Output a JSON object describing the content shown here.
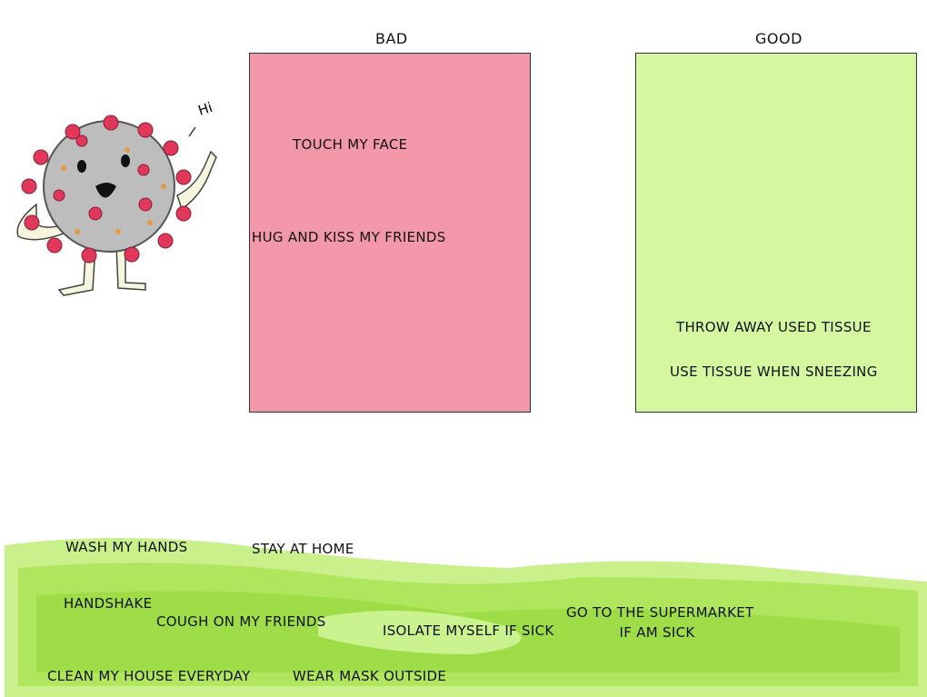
{
  "columns": {
    "bad": {
      "title": "BAD",
      "color": "#f397aa"
    },
    "good": {
      "title": "GOOD",
      "color": "#d4f7a0"
    }
  },
  "mascot": {
    "speech": "Hi"
  },
  "bad_items": [
    "TOUCH MY FACE",
    "HUG AND KISS MY FRIENDS"
  ],
  "good_items": [
    "THROW AWAY USED TISSUE",
    "USE TISSUE WHEN SNEEZING"
  ],
  "pool_items": [
    "WASH MY HANDS",
    "STAY AT HOME",
    "HANDSHAKE",
    "COUGH ON MY FRIENDS",
    "ISOLATE MYSELF IF SICK",
    "GO TO THE SUPERMARKET",
    "IF AM SICK",
    "CLEAN MY HOUSE EVERYDAY",
    "WEAR MASK OUTSIDE"
  ],
  "colors": {
    "grass": "#a6e34f",
    "grass_light": "#c9f08a",
    "virus_body": "#bdbdbd",
    "virus_spikes": "#e0385a"
  }
}
